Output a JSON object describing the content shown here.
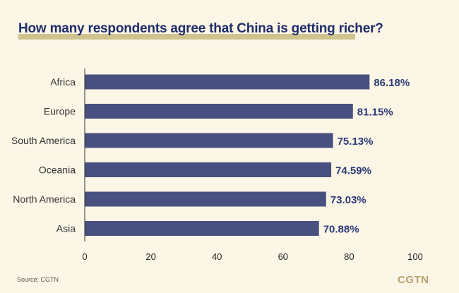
{
  "title": "How many respondents agree that China is getting richer?",
  "source": "Source: CGTN",
  "logo": "CGTN",
  "colors": {
    "bar": "#47507f",
    "value_label": "#2c3a78",
    "title": "#1f2d6b",
    "underline": "#cfc38f",
    "background": "#fbf6e6"
  },
  "chart_data": {
    "type": "bar",
    "orientation": "horizontal",
    "categories": [
      "Africa",
      "Europe",
      "South America",
      "Oceania",
      "North America",
      "Asia"
    ],
    "values": [
      86.18,
      81.15,
      75.13,
      74.59,
      73.03,
      70.88
    ],
    "value_labels": [
      "86.18%",
      "81.15%",
      "75.13%",
      "74.59%",
      "73.03%",
      "70.88%"
    ],
    "xlim": [
      0,
      100
    ],
    "xticks": [
      0,
      20,
      40,
      60,
      80,
      100
    ],
    "grid": false
  }
}
